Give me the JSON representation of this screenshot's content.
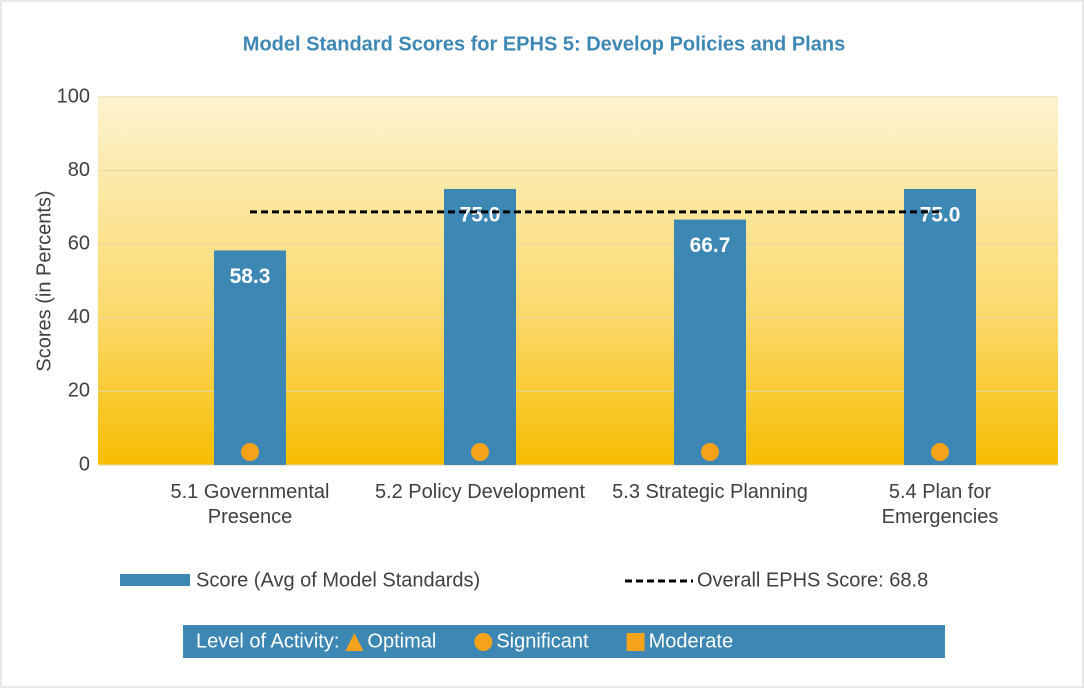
{
  "chart_data": {
    "type": "bar",
    "title": "Model Standard Scores for EPHS 5: Develop Policies and Plans",
    "y_label": "Scores (in Percents)",
    "categories": [
      "5.1 Governmental Presence",
      "5.2 Policy Development",
      "5.3 Strategic Planning",
      "5.4 Plan for Emergencies"
    ],
    "series": [
      {
        "name": "Score (Avg of Model Standards)",
        "color": "#3d87b5",
        "values": [
          58.3,
          75.0,
          66.7,
          75.0
        ],
        "value_labels": [
          "58.3",
          "75.0",
          "66.7",
          "75.0"
        ]
      }
    ],
    "reference_line": {
      "name": "Overall EPHS Score: 68.8",
      "value": 68.8,
      "color": "#000000",
      "dashed": true
    },
    "ylim": [
      0,
      100
    ],
    "yticks": [
      0,
      20,
      40,
      60,
      80,
      100
    ],
    "grid": true,
    "activity": {
      "label": "Level of Activity:",
      "levels": [
        {
          "name": "Optimal",
          "shape": "triangle",
          "color": "#f5a31a"
        },
        {
          "name": "Significant",
          "shape": "circle",
          "color": "#f5a31a"
        },
        {
          "name": "Moderate",
          "shape": "square",
          "color": "#f5a31a"
        }
      ],
      "category_levels": [
        1,
        1,
        1,
        1
      ]
    }
  }
}
